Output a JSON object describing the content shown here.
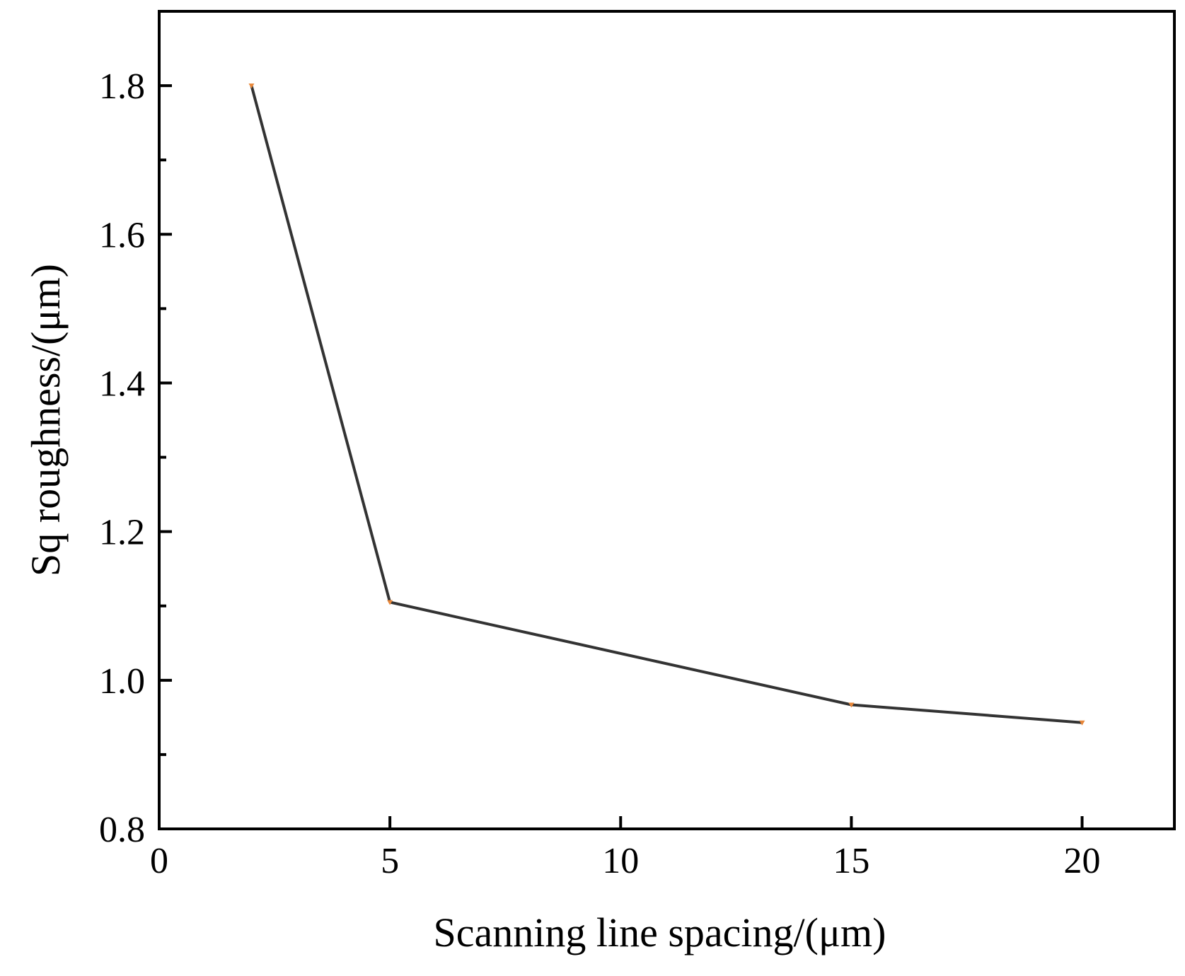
{
  "chart_data": {
    "type": "line",
    "title": "",
    "xlabel": "Scanning line spacing/(μm)",
    "ylabel": "Sq roughness/(μm)",
    "xlim": [
      0,
      22
    ],
    "ylim": [
      0.8,
      1.9
    ],
    "x_ticks": [
      0,
      5,
      10,
      15,
      20
    ],
    "x_tick_labels": [
      "0",
      "5",
      "10",
      "15",
      "20"
    ],
    "y_ticks": [
      0.8,
      1.0,
      1.2,
      1.4,
      1.6,
      1.8
    ],
    "y_tick_labels": [
      "0.8",
      "1.0",
      "1.2",
      "1.4",
      "1.6",
      "1.8"
    ],
    "y_minor_ticks": [
      0.9,
      1.1,
      1.3,
      1.5,
      1.7
    ],
    "grid": false,
    "legend": "none",
    "series": [
      {
        "x": [
          2,
          5,
          15,
          20
        ],
        "y": [
          1.8,
          1.105,
          0.967,
          0.943
        ],
        "color": "#333333",
        "marker_color": "#e8873a"
      }
    ]
  }
}
